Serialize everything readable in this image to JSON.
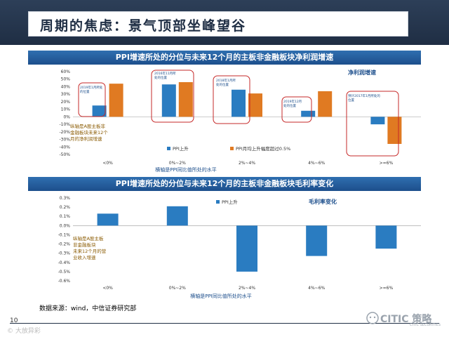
{
  "slide_title": "周期的焦虑：景气顶部坐峰望谷",
  "source_note": "数据来源：wind，中信证券研究部",
  "page_number": "10",
  "watermark_left": "© 大放异彩",
  "logo_text": "CITIC 策略",
  "logo_sub": "CITIC SECURITIES",
  "colors": {
    "bar_blue": "#2a7cc1",
    "bar_orange": "#e07a22",
    "highlight_red": "#c62828",
    "header_blue": "#1d4f8c"
  },
  "chart_data": [
    {
      "type": "bar",
      "header": "PPI增速所处的分位与未来12个月的主板非金融板块净利润增速",
      "title": "净利润增速",
      "categories": [
        "<0%",
        "0%~2%",
        "2%~4%",
        "4%~6%",
        ">=6%"
      ],
      "series": [
        {
          "name": "PPI上升",
          "color": "#2a7cc1",
          "values": [
            0.15,
            0.43,
            0.36,
            0.08,
            -0.1
          ]
        },
        {
          "name": "PPI月均上升幅度超过0.5%",
          "color": "#e07a22",
          "values": [
            0.44,
            0.46,
            0.31,
            0.34,
            -0.36
          ]
        }
      ],
      "ylim": [
        -0.5,
        0.6
      ],
      "yticks": [
        "60%",
        "50%",
        "40%",
        "30%",
        "20%",
        "10%",
        "0%",
        "-10%",
        "-20%",
        "-30%",
        "-40%",
        "-50%"
      ],
      "xlabel": "横轴是PPI同比值所处的水平",
      "annotation_left": [
        "纵轴是A股主板非",
        "金融板块未来12个",
        "月的净利润增速"
      ],
      "callouts": [
        {
          "lines": [
            "2019年1月所处",
            "的位置"
          ]
        },
        {
          "lines": [
            "2016年11月所",
            "处的位置"
          ]
        },
        {
          "lines": [
            "2018年1月所",
            "处的位置"
          ]
        },
        {
          "lines": [
            "2019年12月",
            "处的位置"
          ]
        },
        {
          "lines": [
            "预计2017年1月所处的",
            "位置"
          ]
        }
      ]
    },
    {
      "type": "bar",
      "header": "PPI增速所处的分位与未来12个月的主板非金融板块毛利率变化",
      "title": "毛利率变化",
      "categories": [
        "<0%",
        "0%~2%",
        "2%~4%",
        "4%~6%",
        ">=6%"
      ],
      "series": [
        {
          "name": "PPI上升",
          "color": "#2a7cc1",
          "values": [
            0.13,
            0.21,
            -0.5,
            -0.33,
            -0.25
          ]
        }
      ],
      "ylim": [
        -0.6,
        0.3
      ],
      "yticks": [
        "0.3%",
        "0.2%",
        "0.1%",
        "0.0%",
        "-0.1%",
        "-0.2%",
        "-0.3%",
        "-0.4%",
        "-0.5%",
        "-0.6%"
      ],
      "xlabel": "横轴是PPI同比值所处的水平",
      "annotation_left": [
        "纵轴是A股主板",
        "非金融板块",
        "未来12个月的营",
        "业收入增速"
      ]
    }
  ]
}
